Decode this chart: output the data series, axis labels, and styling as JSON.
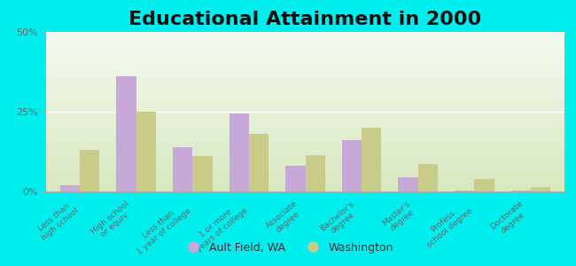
{
  "title": "Educational Attainment in 2000",
  "categories": [
    "Less than\nhigh school",
    "High school\nor equiv.",
    "Less than\n1 year of college",
    "1 or more\nyears of college",
    "Associate\ndegree",
    "Bachelor's\ndegree",
    "Master's\ndegree",
    "Profess.\nschool degree",
    "Doctorate\ndegree"
  ],
  "ault_field": [
    2.0,
    36.0,
    14.0,
    24.5,
    8.0,
    16.0,
    4.5,
    0.3,
    0.3
  ],
  "washington": [
    13.0,
    25.0,
    11.0,
    18.0,
    11.5,
    20.0,
    8.5,
    4.0,
    1.5
  ],
  "ault_color": "#c8a8d8",
  "washington_color": "#c8cc88",
  "bg_top_color": "#f5faf0",
  "bg_bottom_color": "#d8e8c0",
  "outer_bg": "#00eeee",
  "ylim": [
    0,
    50
  ],
  "yticks": [
    0,
    25,
    50
  ],
  "ytick_labels": [
    "0%",
    "25%",
    "50%"
  ],
  "title_fontsize": 16,
  "legend_labels": [
    "Ault Field, WA",
    "Washington"
  ]
}
